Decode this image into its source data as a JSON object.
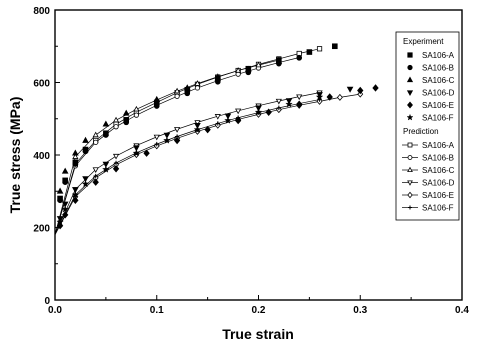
{
  "chart_data": {
    "type": "scatter",
    "xlabel": "True strain",
    "ylabel": "True stress (MPa)",
    "xlim": [
      0.0,
      0.4
    ],
    "ylim": [
      0,
      800
    ],
    "x_ticks": [
      "0.0",
      "0.1",
      "0.2",
      "0.3",
      "0.4"
    ],
    "y_ticks": [
      "0",
      "200",
      "400",
      "600",
      "800"
    ],
    "legend_position": "top-right",
    "legend": {
      "experiment_header": "Experiment",
      "prediction_header": "Prediction"
    },
    "experiment": [
      {
        "name": "SA106-A",
        "marker": "square",
        "x": [
          0.005,
          0.01,
          0.02,
          0.03,
          0.05,
          0.07,
          0.1,
          0.13,
          0.16,
          0.19,
          0.22,
          0.25,
          0.275
        ],
        "y": [
          280,
          330,
          380,
          415,
          460,
          497,
          545,
          580,
          612,
          638,
          662,
          684,
          700
        ]
      },
      {
        "name": "SA106-B",
        "marker": "circle",
        "x": [
          0.005,
          0.01,
          0.02,
          0.03,
          0.05,
          0.07,
          0.1,
          0.13,
          0.16,
          0.19,
          0.22,
          0.24
        ],
        "y": [
          275,
          325,
          375,
          410,
          455,
          490,
          535,
          570,
          602,
          628,
          652,
          668
        ]
      },
      {
        "name": "SA106-C",
        "marker": "triangle-up",
        "x": [
          0.005,
          0.01,
          0.02,
          0.03,
          0.05,
          0.07,
          0.1,
          0.13,
          0.16,
          0.19,
          0.22
        ],
        "y": [
          300,
          355,
          405,
          440,
          485,
          515,
          553,
          585,
          612,
          636,
          658
        ]
      },
      {
        "name": "SA106-D",
        "marker": "triangle-down",
        "x": [
          0.005,
          0.01,
          0.02,
          0.03,
          0.05,
          0.08,
          0.11,
          0.14,
          0.17,
          0.2,
          0.23,
          0.26,
          0.29
        ],
        "y": [
          225,
          265,
          305,
          335,
          375,
          420,
          455,
          482,
          508,
          530,
          550,
          567,
          582
        ]
      },
      {
        "name": "SA106-E",
        "marker": "diamond",
        "x": [
          0.005,
          0.01,
          0.02,
          0.04,
          0.06,
          0.09,
          0.12,
          0.15,
          0.18,
          0.21,
          0.24,
          0.27,
          0.3,
          0.315
        ],
        "y": [
          205,
          235,
          275,
          325,
          362,
          405,
          440,
          470,
          495,
          518,
          540,
          560,
          578,
          585
        ]
      },
      {
        "name": "SA106-F",
        "marker": "star",
        "x": [
          0.005,
          0.01,
          0.02,
          0.03,
          0.05,
          0.08,
          0.11,
          0.14,
          0.17,
          0.2,
          0.23,
          0.26
        ],
        "y": [
          215,
          250,
          290,
          320,
          360,
          405,
          440,
          470,
          495,
          518,
          540,
          560
        ]
      }
    ],
    "prediction": [
      {
        "name": "SA106-A",
        "marker": "square-open",
        "x": [
          0.0,
          0.02,
          0.04,
          0.06,
          0.08,
          0.1,
          0.12,
          0.14,
          0.16,
          0.18,
          0.2,
          0.22,
          0.24,
          0.26
        ],
        "y": [
          180,
          375,
          440,
          485,
          518,
          545,
          572,
          595,
          615,
          633,
          650,
          665,
          680,
          693
        ]
      },
      {
        "name": "SA106-B",
        "marker": "circle-open",
        "x": [
          0.0,
          0.02,
          0.04,
          0.06,
          0.08,
          0.1,
          0.12,
          0.14,
          0.16,
          0.18,
          0.2,
          0.22,
          0.24
        ],
        "y": [
          180,
          370,
          435,
          478,
          510,
          537,
          562,
          585,
          605,
          623,
          640,
          655,
          669
        ]
      },
      {
        "name": "SA106-C",
        "marker": "triangle-up-open",
        "x": [
          0.0,
          0.02,
          0.04,
          0.06,
          0.08,
          0.1,
          0.12,
          0.14,
          0.16,
          0.18,
          0.2,
          0.22
        ],
        "y": [
          180,
          395,
          455,
          496,
          526,
          552,
          576,
          597,
          616,
          633,
          648,
          662
        ]
      },
      {
        "name": "SA106-D",
        "marker": "triangle-down-open",
        "x": [
          0.0,
          0.02,
          0.04,
          0.06,
          0.08,
          0.1,
          0.12,
          0.14,
          0.16,
          0.18,
          0.2,
          0.22,
          0.24,
          0.26
        ],
        "y": [
          180,
          305,
          360,
          397,
          426,
          450,
          471,
          490,
          507,
          522,
          536,
          549,
          561,
          572
        ]
      },
      {
        "name": "SA106-E",
        "marker": "diamond-open",
        "x": [
          0.0,
          0.02,
          0.04,
          0.06,
          0.08,
          0.1,
          0.12,
          0.14,
          0.16,
          0.18,
          0.2,
          0.22,
          0.24,
          0.26,
          0.28,
          0.3
        ],
        "y": [
          180,
          285,
          337,
          373,
          401,
          425,
          446,
          465,
          482,
          498,
          512,
          525,
          537,
          548,
          559,
          568
        ]
      },
      {
        "name": "SA106-F",
        "marker": "cross",
        "x": [
          0.0,
          0.02,
          0.04,
          0.06,
          0.08,
          0.1,
          0.12,
          0.14,
          0.16,
          0.18,
          0.2,
          0.22,
          0.24,
          0.26
        ],
        "y": [
          180,
          290,
          342,
          378,
          406,
          430,
          451,
          470,
          487,
          503,
          517,
          530,
          542,
          553
        ]
      }
    ]
  }
}
